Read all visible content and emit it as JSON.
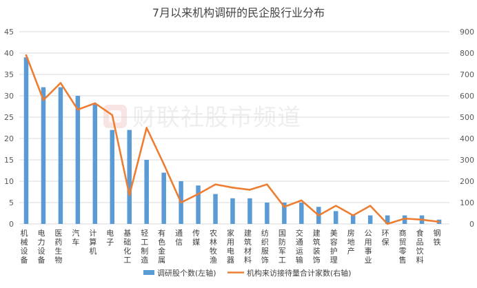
{
  "chart_data": {
    "type": "bar",
    "title": "7月以来机构调研的民企股行业分布",
    "watermark": "财联社股市频道",
    "categories": [
      "机械设备",
      "电力设备",
      "医药生物",
      "汽车",
      "计算机",
      "电子",
      "基础化工",
      "轻工制造",
      "有色金属",
      "通信",
      "传媒",
      "农林牧渔",
      "家用电器",
      "建筑材料",
      "纺织服饰",
      "国防军工",
      "交通运输",
      "建筑装饰",
      "美容护理",
      "房地产",
      "公用事业",
      "环保",
      "商贸零售",
      "食品饮料",
      "钢铁"
    ],
    "left_axis": {
      "min": 0,
      "max": 45,
      "ticks": [
        "0",
        "5",
        "10",
        "15",
        "20",
        "25",
        "30",
        "35",
        "40",
        "45"
      ]
    },
    "right_axis": {
      "min": 0,
      "max": 900,
      "ticks": [
        "0",
        "100",
        "200",
        "300",
        "400",
        "500",
        "600",
        "700",
        "800",
        "900"
      ]
    },
    "series": [
      {
        "name": "调研股个数(左轴)",
        "type": "bar",
        "axis": "left",
        "color": "#5b9bd5",
        "values": [
          39,
          32,
          32,
          30,
          28,
          22,
          22,
          15,
          12,
          10,
          9,
          7,
          6,
          6,
          5,
          5,
          5,
          4,
          3,
          2,
          2,
          2,
          2,
          2,
          1
        ]
      },
      {
        "name": "机构来访接待量合计家数(右轴)",
        "type": "line",
        "axis": "right",
        "color": "#ed7d31",
        "values": [
          790,
          580,
          660,
          535,
          565,
          510,
          135,
          450,
          280,
          100,
          140,
          185,
          170,
          160,
          185,
          80,
          110,
          40,
          85,
          40,
          85,
          0,
          25,
          20,
          10
        ]
      }
    ],
    "legend": "bottom",
    "grid": true
  }
}
